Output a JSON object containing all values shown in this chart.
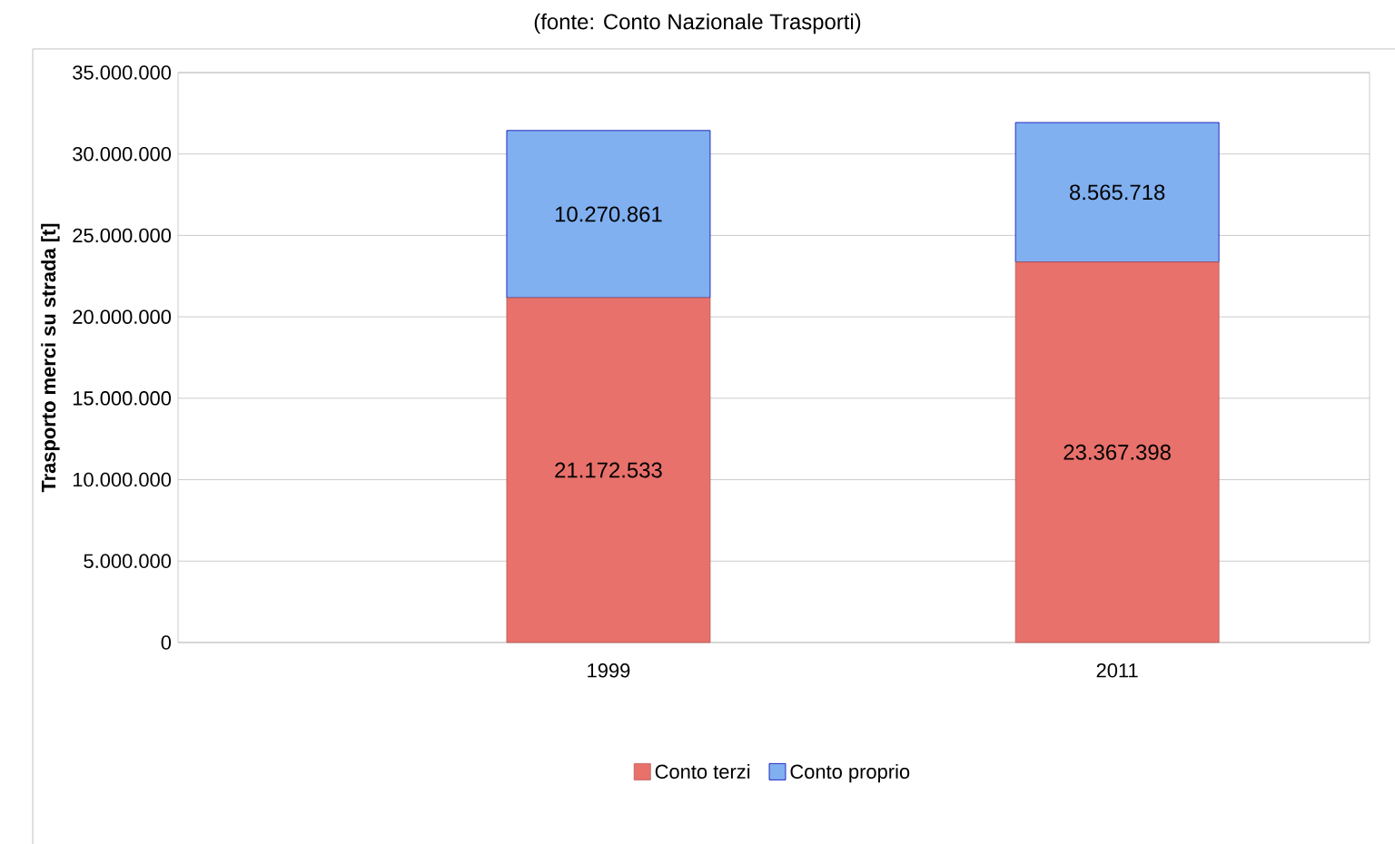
{
  "chart_data": {
    "type": "bar",
    "stacked": true,
    "subtitle": "(fonte: Conto Nazionale Trasporti)",
    "ylabel": "Trasporto merci su strada [t]",
    "categories": [
      "1999",
      "2011"
    ],
    "series": [
      {
        "name": "Conto terzi",
        "color": "#e8716b",
        "values": [
          21172533,
          23367398
        ],
        "value_labels": [
          "21.172.533",
          "23.367.398"
        ]
      },
      {
        "name": "Conto proprio",
        "color": "#80b0f0",
        "values": [
          10270861,
          8565718
        ],
        "value_labels": [
          "10.270.861",
          "8.565.718"
        ]
      }
    ],
    "ylim": [
      0,
      35000000
    ],
    "yticks": [
      {
        "value": 0,
        "label": "0"
      },
      {
        "value": 5000000,
        "label": "5.000.000"
      },
      {
        "value": 10000000,
        "label": "10.000.000"
      },
      {
        "value": 15000000,
        "label": "15.000.000"
      },
      {
        "value": 20000000,
        "label": "20.000.000"
      },
      {
        "value": 25000000,
        "label": "25.000.000"
      },
      {
        "value": 30000000,
        "label": "30.000.000"
      },
      {
        "value": 35000000,
        "label": "35.000.000"
      }
    ],
    "grid": "y",
    "legend": "bottom"
  }
}
